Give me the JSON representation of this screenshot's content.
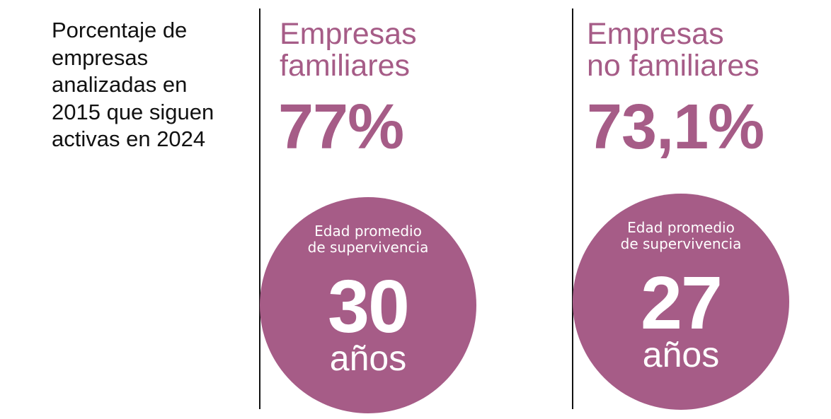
{
  "intro": {
    "lines": [
      "Porcentaje de",
      "empresas",
      "analizadas en",
      "2015 que siguen",
      "activas en 2024"
    ]
  },
  "columns": [
    {
      "title_lines": [
        "Empresas",
        "familiares"
      ],
      "percentage": "77%",
      "circle": {
        "caption_lines": [
          "Edad promedio",
          "de supervivencia"
        ],
        "number": "30",
        "unit": "años"
      }
    },
    {
      "title_lines": [
        "Empresas",
        "no familiares"
      ],
      "percentage": "73,1%",
      "circle": {
        "caption_lines": [
          "Edad promedio",
          "de supervivencia"
        ],
        "number": "27",
        "unit": "años"
      }
    }
  ],
  "colors": {
    "accent": "#a65c87",
    "text": "#111111",
    "circle_text": "#ffffff"
  }
}
